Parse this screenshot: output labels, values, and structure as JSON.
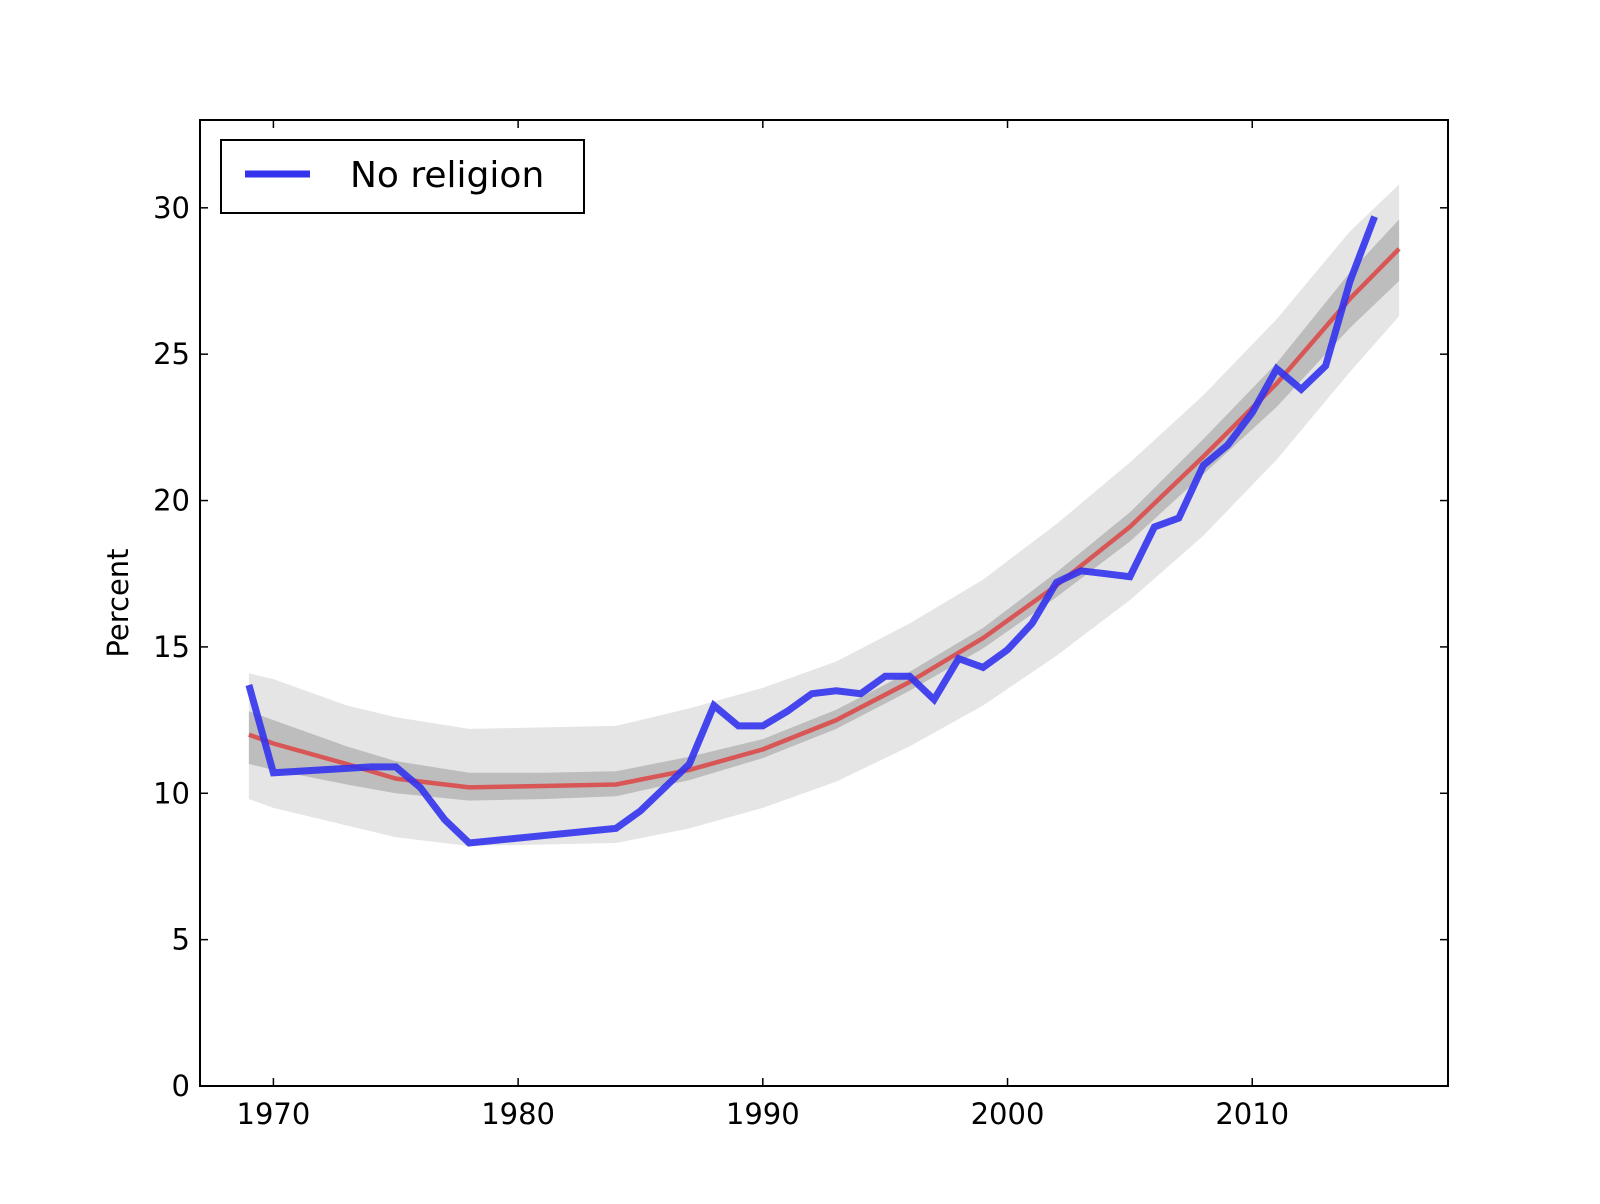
{
  "chart_data": {
    "type": "line",
    "title": "",
    "xlabel": "",
    "ylabel": "Percent",
    "xlim": [
      1967,
      2018
    ],
    "ylim": [
      0,
      33
    ],
    "xticks": [
      1970,
      1980,
      1990,
      2000,
      2010
    ],
    "yticks": [
      0,
      5,
      10,
      15,
      20,
      25,
      30
    ],
    "legend": {
      "location": "upper-left",
      "entries": [
        "No religion"
      ]
    },
    "series": [
      {
        "name": "No religion",
        "color": "#3333ee",
        "x": [
          1969,
          1970,
          1974,
          1975,
          1976,
          1977,
          1978,
          1984,
          1985,
          1986,
          1987,
          1988,
          1989,
          1990,
          1991,
          1992,
          1993,
          1994,
          1995,
          1996,
          1997,
          1998,
          1999,
          2000,
          2001,
          2002,
          2003,
          2004,
          2005,
          2006,
          2007,
          2008,
          2009,
          2010,
          2011,
          2012,
          2013,
          2014,
          2015
        ],
        "values": [
          13.7,
          10.7,
          10.9,
          10.9,
          10.2,
          9.1,
          8.3,
          8.8,
          9.4,
          10.2,
          11.0,
          13.0,
          12.3,
          12.3,
          12.8,
          13.4,
          13.5,
          13.4,
          14.0,
          14.0,
          13.2,
          14.6,
          14.3,
          14.9,
          15.8,
          17.2,
          17.6,
          17.5,
          17.4,
          19.1,
          19.4,
          21.2,
          21.9,
          23.0,
          24.5,
          23.8,
          24.6,
          27.5,
          29.7
        ]
      }
    ],
    "fit": {
      "name": "fit",
      "color": "#dd4444",
      "x": [
        1969,
        1970,
        1973,
        1975,
        1978,
        1981,
        1984,
        1987,
        1990,
        1993,
        1996,
        1999,
        2002,
        2005,
        2008,
        2011,
        2014,
        2016
      ],
      "values": [
        12.0,
        11.7,
        11.0,
        10.5,
        10.2,
        10.25,
        10.3,
        10.8,
        11.5,
        12.5,
        13.8,
        15.3,
        17.1,
        19.1,
        21.5,
        24.0,
        26.9,
        28.6
      ]
    },
    "bands": [
      {
        "name": "prediction-interval",
        "color": "#e5e5e5",
        "x": [
          1969,
          1970,
          1973,
          1975,
          1978,
          1981,
          1984,
          1987,
          1990,
          1993,
          1996,
          1999,
          2002,
          2005,
          2008,
          2011,
          2014,
          2016
        ],
        "lower": [
          9.8,
          9.5,
          8.9,
          8.5,
          8.2,
          8.25,
          8.3,
          8.8,
          9.5,
          10.4,
          11.6,
          13.0,
          14.7,
          16.6,
          18.8,
          21.4,
          24.4,
          26.3
        ],
        "upper": [
          14.1,
          13.9,
          13.0,
          12.6,
          12.2,
          12.25,
          12.3,
          12.9,
          13.6,
          14.5,
          15.8,
          17.3,
          19.2,
          21.3,
          23.6,
          26.2,
          29.2,
          30.8
        ]
      },
      {
        "name": "confidence-interval",
        "color": "#bdbdbd",
        "x": [
          1969,
          1970,
          1973,
          1975,
          1978,
          1981,
          1984,
          1987,
          1990,
          1993,
          1996,
          1999,
          2002,
          2005,
          2008,
          2011,
          2014,
          2016
        ],
        "lower": [
          11.0,
          10.8,
          10.3,
          10.0,
          9.75,
          9.8,
          9.9,
          10.45,
          11.2,
          12.2,
          13.5,
          14.95,
          16.7,
          18.6,
          20.9,
          23.2,
          25.9,
          27.5
        ],
        "upper": [
          12.8,
          12.5,
          11.6,
          11.1,
          10.7,
          10.7,
          10.75,
          11.25,
          11.85,
          12.85,
          14.15,
          15.65,
          17.55,
          19.6,
          22.1,
          24.7,
          27.8,
          29.6
        ]
      }
    ]
  }
}
